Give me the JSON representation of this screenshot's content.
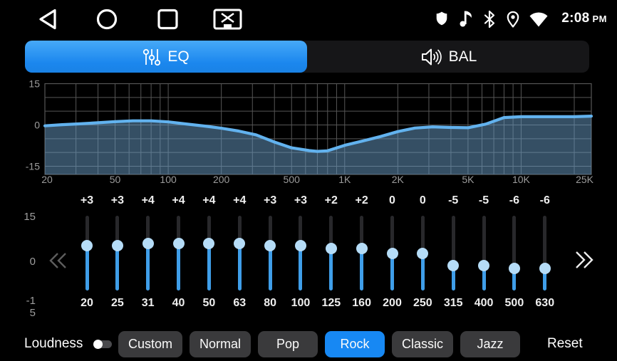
{
  "status_bar": {
    "time": "2:08",
    "meridiem": "PM",
    "nav_icons": [
      "back-icon",
      "home-icon",
      "recents-icon",
      "screen-off-icon"
    ],
    "status_icons": [
      "shield-icon",
      "music-note-icon",
      "bluetooth-icon",
      "location-icon",
      "wifi-icon"
    ]
  },
  "tab_bar": {
    "tabs": [
      {
        "label": "EQ",
        "icon": "eq-sliders-icon",
        "active": true
      },
      {
        "label": "BAL",
        "icon": "speaker-icon",
        "active": false
      }
    ]
  },
  "chart_data": {
    "type": "area",
    "title": "EQ frequency response curve",
    "x_axis": {
      "scale": "log",
      "unit": "Hz",
      "range": [
        20,
        25000
      ],
      "ticks": [
        "20",
        "50",
        "100",
        "200",
        "500",
        "1K",
        "2K",
        "5K",
        "10K",
        "25K"
      ],
      "tick_values": [
        20,
        50,
        100,
        200,
        500,
        1000,
        2000,
        5000,
        10000,
        25000
      ]
    },
    "y_axis": {
      "range": [
        -15,
        15
      ],
      "ticks": [
        "15",
        "0",
        "-15"
      ],
      "tick_values": [
        15,
        0,
        -15
      ],
      "grid_step": 5
    },
    "grid": true,
    "legend": "none",
    "line_color": "#62b2ee",
    "fill_color": "rgba(106,158,200,0.5)",
    "grid_color": "#565656",
    "series": [
      {
        "name": "eq-curve",
        "points": [
          [
            20,
            -0.3
          ],
          [
            25,
            0.1
          ],
          [
            31,
            0.4
          ],
          [
            40,
            0.8
          ],
          [
            50,
            1.2
          ],
          [
            63,
            1.5
          ],
          [
            80,
            1.5
          ],
          [
            100,
            1.1
          ],
          [
            125,
            0.4
          ],
          [
            160,
            -0.4
          ],
          [
            200,
            -1.2
          ],
          [
            250,
            -2.2
          ],
          [
            315,
            -3.6
          ],
          [
            400,
            -6.2
          ],
          [
            500,
            -8.3
          ],
          [
            630,
            -9.3
          ],
          [
            700,
            -9.6
          ],
          [
            800,
            -9.4
          ],
          [
            1000,
            -7.4
          ],
          [
            1250,
            -5.9
          ],
          [
            1600,
            -4.2
          ],
          [
            2000,
            -2.4
          ],
          [
            2500,
            -1.1
          ],
          [
            3150,
            -0.7
          ],
          [
            4000,
            -0.9
          ],
          [
            5000,
            -1.0
          ],
          [
            6300,
            0.3
          ],
          [
            8000,
            2.7
          ],
          [
            10000,
            3.0
          ],
          [
            12500,
            3.0
          ],
          [
            16000,
            3.0
          ],
          [
            20000,
            3.0
          ],
          [
            25000,
            3.2
          ]
        ]
      }
    ]
  },
  "equalizer": {
    "scale_top": "15",
    "scale_mid": "0",
    "scale_bottom_line1": "-1",
    "scale_bottom_line2": "5",
    "prev_icon": "chevrons-left-icon",
    "next_icon": "chevrons-right-icon",
    "bands": [
      {
        "freq": "20",
        "gain_label": "+3",
        "gain": 3
      },
      {
        "freq": "25",
        "gain_label": "+3",
        "gain": 3
      },
      {
        "freq": "31",
        "gain_label": "+4",
        "gain": 4
      },
      {
        "freq": "40",
        "gain_label": "+4",
        "gain": 4
      },
      {
        "freq": "50",
        "gain_label": "+4",
        "gain": 4
      },
      {
        "freq": "63",
        "gain_label": "+4",
        "gain": 4
      },
      {
        "freq": "80",
        "gain_label": "+3",
        "gain": 3
      },
      {
        "freq": "100",
        "gain_label": "+3",
        "gain": 3
      },
      {
        "freq": "125",
        "gain_label": "+2",
        "gain": 2
      },
      {
        "freq": "160",
        "gain_label": "+2",
        "gain": 2
      },
      {
        "freq": "200",
        "gain_label": "0",
        "gain": 0
      },
      {
        "freq": "250",
        "gain_label": "0",
        "gain": 0
      },
      {
        "freq": "315",
        "gain_label": "-5",
        "gain": -5
      },
      {
        "freq": "400",
        "gain_label": "-5",
        "gain": -5
      },
      {
        "freq": "500",
        "gain_label": "-6",
        "gain": -6
      },
      {
        "freq": "630",
        "gain_label": "-6",
        "gain": -6
      }
    ]
  },
  "footer": {
    "loudness_label": "Loudness",
    "loudness_on": false,
    "presets": [
      {
        "label": "Custom",
        "active": false
      },
      {
        "label": "Normal",
        "active": false
      },
      {
        "label": "Pop",
        "active": false
      },
      {
        "label": "Rock",
        "active": true
      },
      {
        "label": "Classic",
        "active": false
      },
      {
        "label": "Jazz",
        "active": false
      }
    ],
    "reset_label": "Reset"
  },
  "colors": {
    "accent": "#1b87ee",
    "active_preset": "#1788f3",
    "slider_fill": "#3f9ee9",
    "slider_knob": "#b5dcf7",
    "curve_line": "#62b2ee"
  }
}
